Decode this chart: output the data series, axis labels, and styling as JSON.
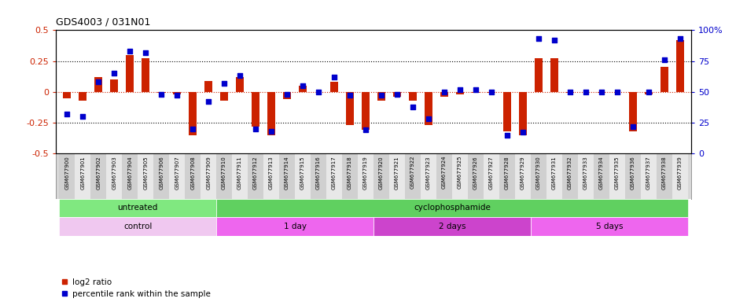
{
  "title": "GDS4003 / 031N01",
  "samples": [
    "GSM677900",
    "GSM677901",
    "GSM677902",
    "GSM677903",
    "GSM677904",
    "GSM677905",
    "GSM677906",
    "GSM677907",
    "GSM677908",
    "GSM677909",
    "GSM677910",
    "GSM677911",
    "GSM677912",
    "GSM677913",
    "GSM677914",
    "GSM677915",
    "GSM677916",
    "GSM677917",
    "GSM677918",
    "GSM677919",
    "GSM677920",
    "GSM677921",
    "GSM677922",
    "GSM677923",
    "GSM677924",
    "GSM677925",
    "GSM677926",
    "GSM677927",
    "GSM677928",
    "GSM677929",
    "GSM677930",
    "GSM677931",
    "GSM677932",
    "GSM677933",
    "GSM677934",
    "GSM677935",
    "GSM677936",
    "GSM677937",
    "GSM677938",
    "GSM677939"
  ],
  "log2_ratio": [
    -0.05,
    -0.07,
    0.12,
    0.1,
    0.3,
    0.27,
    -0.01,
    -0.02,
    -0.35,
    0.09,
    -0.07,
    0.12,
    -0.28,
    -0.35,
    -0.06,
    0.05,
    0.0,
    0.08,
    -0.27,
    -0.31,
    -0.07,
    -0.04,
    -0.07,
    -0.27,
    -0.04,
    -0.02,
    -0.01,
    -0.01,
    -0.32,
    -0.35,
    0.27,
    0.27,
    -0.01,
    0.0,
    -0.01,
    0.0,
    -0.32,
    -0.02,
    0.2,
    0.42
  ],
  "percentile": [
    32,
    30,
    58,
    65,
    83,
    82,
    48,
    47,
    20,
    42,
    57,
    63,
    20,
    18,
    48,
    55,
    50,
    62,
    47,
    19,
    47,
    48,
    38,
    28,
    50,
    52,
    52,
    50,
    15,
    17,
    93,
    92,
    50,
    50,
    50,
    50,
    22,
    50,
    76,
    93
  ],
  "ylim": [
    -0.5,
    0.5
  ],
  "yticks_left": [
    -0.5,
    -0.25,
    0.0,
    0.25,
    0.5
  ],
  "ytick_labels_left": [
    "-0.5",
    "-0.25",
    "0",
    "0.25",
    "0.5"
  ],
  "right_yticks": [
    0,
    25,
    50,
    75,
    100
  ],
  "right_ytick_labels": [
    "0",
    "25",
    "50",
    "75",
    "100%"
  ],
  "hline_dotted": [
    0.25,
    -0.25
  ],
  "bar_color": "#CC2200",
  "dot_color": "#0000CC",
  "zero_line_color": "#CC2200",
  "agent_regions": [
    {
      "label": "untreated",
      "start": 0,
      "end": 9,
      "color": "#80E880"
    },
    {
      "label": "cyclophosphamide",
      "start": 10,
      "end": 39,
      "color": "#60D060"
    }
  ],
  "time_regions": [
    {
      "label": "control",
      "start": 0,
      "end": 9,
      "color": "#F0C8F0"
    },
    {
      "label": "1 day",
      "start": 10,
      "end": 19,
      "color": "#EE66EE"
    },
    {
      "label": "2 days",
      "start": 20,
      "end": 29,
      "color": "#CC44CC"
    },
    {
      "label": "5 days",
      "start": 30,
      "end": 39,
      "color": "#EE66EE"
    }
  ],
  "legend_log2_color": "#CC2200",
  "legend_pct_color": "#0000CC",
  "background_color": "#ffffff",
  "plot_bg_color": "#ffffff",
  "xtick_bg_color": "#D8D8D8",
  "agent_label_color": "#888888",
  "time_label_color": "#888888"
}
